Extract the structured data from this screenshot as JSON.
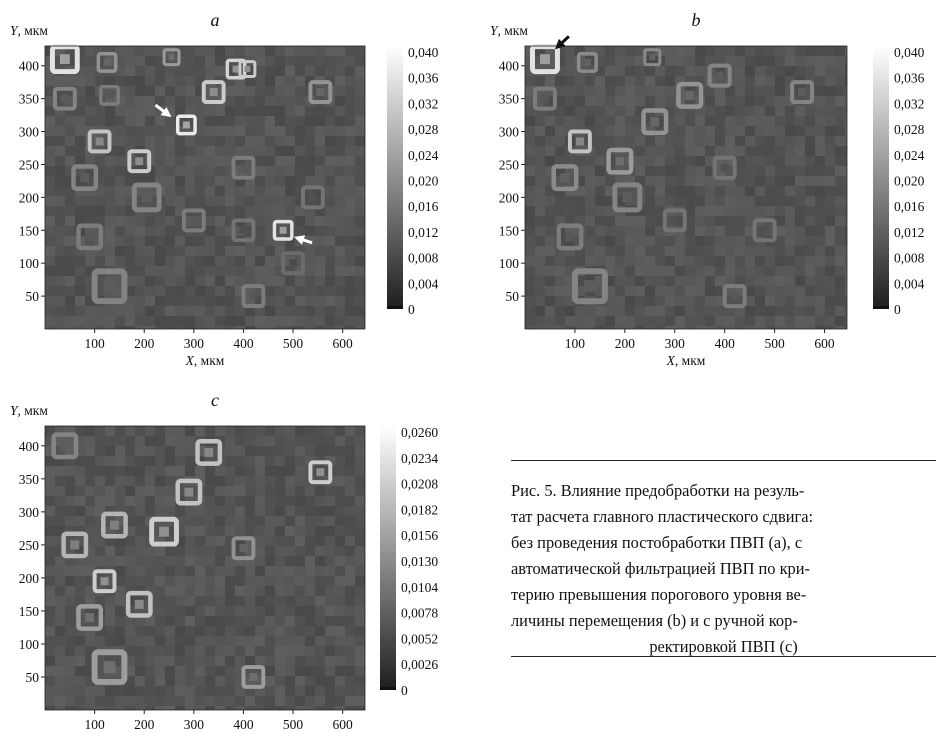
{
  "figure": {
    "caption_lines": [
      "Рис. 5. Влияние предобработки на резуль-",
      "тат расчета главного пластического сдвига:",
      "без проведения постобработки ПВП (a), с",
      "автоматической фильтрацией ПВП по кри-",
      "терию превышения порогового уровня ве-",
      "личины перемещения (b) и с ручной кор-",
      "ректировкой ПВП (c)"
    ]
  },
  "chart_data": [
    {
      "type": "heatmap",
      "panel_label": "a",
      "xlabel": "X, мкм",
      "ylabel": "Y, мкм",
      "xlim": [
        0,
        645
      ],
      "ylim": [
        0,
        430
      ],
      "x_ticks": [
        "100",
        "200",
        "300",
        "400",
        "500",
        "600"
      ],
      "y_ticks": [
        "50",
        "100",
        "150",
        "200",
        "250",
        "300",
        "350",
        "400"
      ],
      "colorbar": {
        "range": [
          0,
          0.04
        ],
        "tick_labels": [
          "0,040",
          "0,036",
          "0,032",
          "0,028",
          "0,024",
          "0,020",
          "0,016",
          "0,012",
          "0,008",
          "0,004",
          "0"
        ]
      },
      "arrows": "white",
      "features": [
        {
          "x": 40,
          "y": 410,
          "value": 0.036,
          "size": 50
        },
        {
          "x": 125,
          "y": 405,
          "value": 0.016,
          "size": 35
        },
        {
          "x": 255,
          "y": 413,
          "value": 0.018,
          "size": 30
        },
        {
          "x": 385,
          "y": 395,
          "value": 0.032,
          "size": 35
        },
        {
          "x": 408,
          "y": 395,
          "value": 0.03,
          "size": 30
        },
        {
          "x": 340,
          "y": 360,
          "value": 0.03,
          "size": 40
        },
        {
          "x": 555,
          "y": 360,
          "value": 0.016,
          "size": 40
        },
        {
          "x": 40,
          "y": 350,
          "value": 0.012,
          "size": 40
        },
        {
          "x": 130,
          "y": 355,
          "value": 0.01,
          "size": 35
        },
        {
          "x": 285,
          "y": 310,
          "value": 0.038,
          "size": 35
        },
        {
          "x": 110,
          "y": 285,
          "value": 0.028,
          "size": 40
        },
        {
          "x": 190,
          "y": 255,
          "value": 0.03,
          "size": 40
        },
        {
          "x": 80,
          "y": 230,
          "value": 0.012,
          "size": 45
        },
        {
          "x": 205,
          "y": 200,
          "value": 0.012,
          "size": 50
        },
        {
          "x": 400,
          "y": 245,
          "value": 0.01,
          "size": 40
        },
        {
          "x": 300,
          "y": 165,
          "value": 0.01,
          "size": 40
        },
        {
          "x": 480,
          "y": 150,
          "value": 0.036,
          "size": 35
        },
        {
          "x": 90,
          "y": 140,
          "value": 0.01,
          "size": 45
        },
        {
          "x": 400,
          "y": 150,
          "value": 0.008,
          "size": 40
        },
        {
          "x": 540,
          "y": 200,
          "value": 0.008,
          "size": 40
        },
        {
          "x": 130,
          "y": 65,
          "value": 0.012,
          "size": 60
        },
        {
          "x": 420,
          "y": 50,
          "value": 0.01,
          "size": 40
        },
        {
          "x": 500,
          "y": 100,
          "value": 0.006,
          "size": 40
        }
      ]
    },
    {
      "type": "heatmap",
      "panel_label": "b",
      "xlabel": "X, мкм",
      "ylabel": "Y, мкм",
      "xlim": [
        0,
        645
      ],
      "ylim": [
        0,
        430
      ],
      "x_ticks": [
        "100",
        "200",
        "300",
        "400",
        "500",
        "600"
      ],
      "y_ticks": [
        "50",
        "100",
        "150",
        "200",
        "250",
        "300",
        "350",
        "400"
      ],
      "colorbar": {
        "range": [
          0,
          0.04
        ],
        "tick_labels": [
          "0,040",
          "0,036",
          "0,032",
          "0,028",
          "0,024",
          "0,020",
          "0,016",
          "0,012",
          "0,008",
          "0,004",
          "0"
        ]
      },
      "arrows": "black",
      "features": [
        {
          "x": 40,
          "y": 410,
          "value": 0.036,
          "size": 50
        },
        {
          "x": 125,
          "y": 405,
          "value": 0.014,
          "size": 35
        },
        {
          "x": 255,
          "y": 413,
          "value": 0.014,
          "size": 30
        },
        {
          "x": 390,
          "y": 385,
          "value": 0.012,
          "size": 40
        },
        {
          "x": 330,
          "y": 355,
          "value": 0.016,
          "size": 45
        },
        {
          "x": 555,
          "y": 360,
          "value": 0.012,
          "size": 40
        },
        {
          "x": 40,
          "y": 350,
          "value": 0.01,
          "size": 40
        },
        {
          "x": 260,
          "y": 315,
          "value": 0.016,
          "size": 45
        },
        {
          "x": 110,
          "y": 285,
          "value": 0.028,
          "size": 40
        },
        {
          "x": 190,
          "y": 255,
          "value": 0.018,
          "size": 45
        },
        {
          "x": 80,
          "y": 230,
          "value": 0.014,
          "size": 45
        },
        {
          "x": 205,
          "y": 200,
          "value": 0.012,
          "size": 50
        },
        {
          "x": 400,
          "y": 245,
          "value": 0.008,
          "size": 40
        },
        {
          "x": 300,
          "y": 165,
          "value": 0.008,
          "size": 40
        },
        {
          "x": 480,
          "y": 150,
          "value": 0.008,
          "size": 40
        },
        {
          "x": 90,
          "y": 140,
          "value": 0.01,
          "size": 45
        },
        {
          "x": 130,
          "y": 65,
          "value": 0.012,
          "size": 60
        },
        {
          "x": 420,
          "y": 50,
          "value": 0.01,
          "size": 40
        }
      ]
    },
    {
      "type": "heatmap",
      "panel_label": "c",
      "xlabel": "X, мкм",
      "ylabel": "Y, мкм",
      "xlim": [
        0,
        645
      ],
      "ylim": [
        0,
        430
      ],
      "x_ticks": [
        "100",
        "200",
        "300",
        "400",
        "500",
        "600"
      ],
      "y_ticks": [
        "50",
        "100",
        "150",
        "200",
        "250",
        "300",
        "350",
        "400"
      ],
      "colorbar": {
        "range": [
          0,
          0.026
        ],
        "tick_labels": [
          "0,0260",
          "0,0234",
          "0,0208",
          "0,0182",
          "0,0156",
          "0,0130",
          "0,0104",
          "0,0078",
          "0,0052",
          "0,0026",
          "0"
        ]
      },
      "arrows": "none",
      "features": [
        {
          "x": 330,
          "y": 390,
          "value": 0.018,
          "size": 45
        },
        {
          "x": 555,
          "y": 360,
          "value": 0.02,
          "size": 40
        },
        {
          "x": 290,
          "y": 330,
          "value": 0.018,
          "size": 45
        },
        {
          "x": 240,
          "y": 270,
          "value": 0.02,
          "size": 50
        },
        {
          "x": 140,
          "y": 280,
          "value": 0.016,
          "size": 45
        },
        {
          "x": 60,
          "y": 250,
          "value": 0.016,
          "size": 45
        },
        {
          "x": 120,
          "y": 195,
          "value": 0.02,
          "size": 40
        },
        {
          "x": 190,
          "y": 160,
          "value": 0.018,
          "size": 45
        },
        {
          "x": 90,
          "y": 140,
          "value": 0.012,
          "size": 45
        },
        {
          "x": 400,
          "y": 245,
          "value": 0.01,
          "size": 40
        },
        {
          "x": 130,
          "y": 65,
          "value": 0.012,
          "size": 60
        },
        {
          "x": 420,
          "y": 50,
          "value": 0.012,
          "size": 40
        },
        {
          "x": 40,
          "y": 400,
          "value": 0.008,
          "size": 45
        }
      ]
    }
  ]
}
